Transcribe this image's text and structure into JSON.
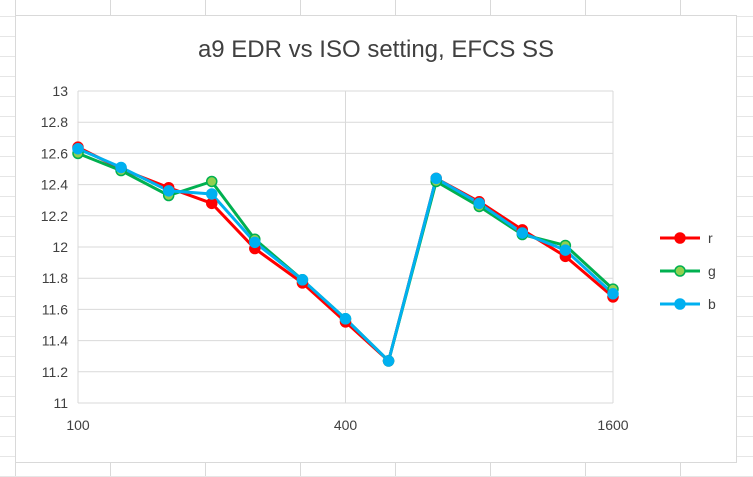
{
  "chart_data": {
    "type": "line",
    "title": "a9 EDR vs ISO setting, EFCS SS",
    "xlabel": "",
    "ylabel": "",
    "x_scale": "log2",
    "x_ticks": [
      100,
      400,
      1600
    ],
    "xlim": [
      100,
      1600
    ],
    "ylim": [
      11,
      13
    ],
    "y_ticks": [
      "11",
      "11.2",
      "11.4",
      "11.6",
      "11.8",
      "12",
      "12.2",
      "12.4",
      "12.6",
      "12.8",
      "13"
    ],
    "grid": true,
    "legend_position": "right",
    "x": [
      100,
      125,
      160,
      200,
      250,
      320,
      400,
      500,
      640,
      800,
      1000,
      1250,
      1600
    ],
    "series": [
      {
        "name": "r",
        "color": "#ff0000",
        "marker_fill": "#ff0000",
        "values": [
          12.64,
          12.5,
          12.38,
          12.28,
          11.99,
          11.77,
          11.52,
          11.27,
          12.44,
          12.29,
          12.11,
          11.94,
          11.68
        ]
      },
      {
        "name": "g",
        "color": "#00b050",
        "marker_fill": "#92d050",
        "values": [
          12.6,
          12.49,
          12.33,
          12.42,
          12.05,
          11.79,
          11.54,
          11.27,
          12.42,
          12.26,
          12.08,
          12.01,
          11.73
        ]
      },
      {
        "name": "b",
        "color": "#00b0f0",
        "marker_fill": "#00b0f0",
        "values": [
          12.63,
          12.51,
          12.36,
          12.34,
          12.03,
          11.79,
          11.54,
          11.27,
          12.44,
          12.28,
          12.09,
          11.98,
          11.7
        ]
      }
    ]
  }
}
